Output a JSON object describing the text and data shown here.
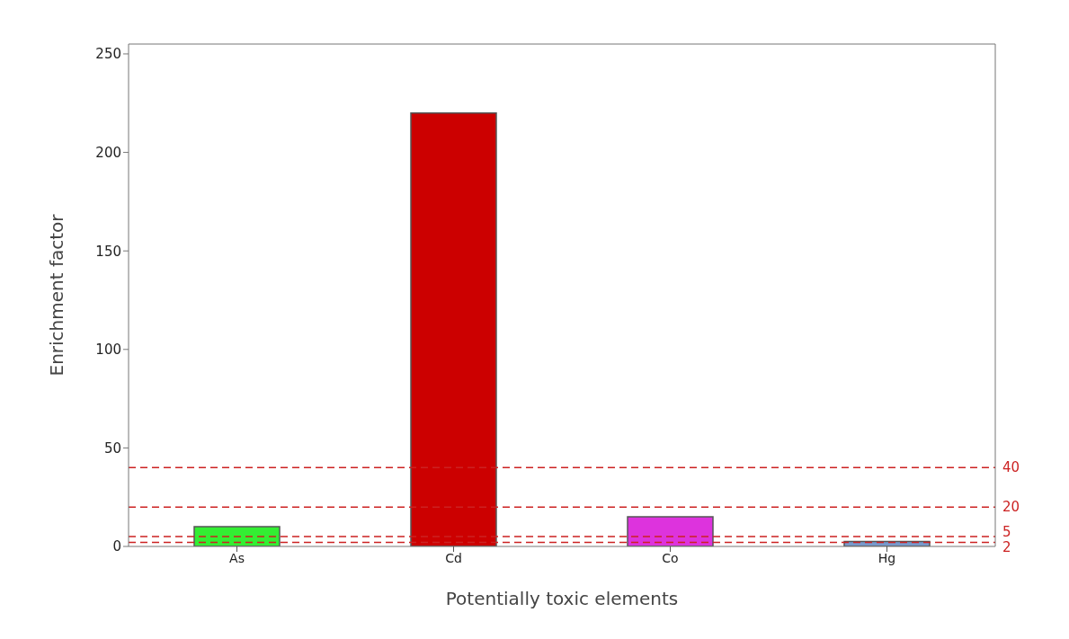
{
  "chart_data": {
    "type": "bar",
    "xlabel": "Potentially toxic elements",
    "ylabel": "Enrichment factor",
    "categories": [
      "As",
      "Cd",
      "Co",
      "Hg"
    ],
    "values": [
      10,
      220,
      15,
      2.5
    ],
    "colors": [
      "#33ee33",
      "#cc0000",
      "#dd33dd",
      "#7799cc"
    ],
    "ylim": [
      0,
      255
    ],
    "yticks": [
      0,
      50,
      100,
      150,
      200,
      250
    ],
    "grid": false,
    "legend": false,
    "ref_lines": [
      {
        "axis": "y",
        "value": 40,
        "label": "40",
        "color": "#cc2222",
        "line_style": "dashed"
      },
      {
        "axis": "y",
        "value": 20,
        "label": "20",
        "color": "#cc2222",
        "line_style": "dashed"
      },
      {
        "axis": "y",
        "value": 5,
        "label": "5",
        "color": "#cc2222",
        "line_style": "dashed"
      },
      {
        "axis": "y",
        "value": 2,
        "label": "2",
        "color": "#cc2222",
        "line_style": "dashed"
      }
    ]
  }
}
